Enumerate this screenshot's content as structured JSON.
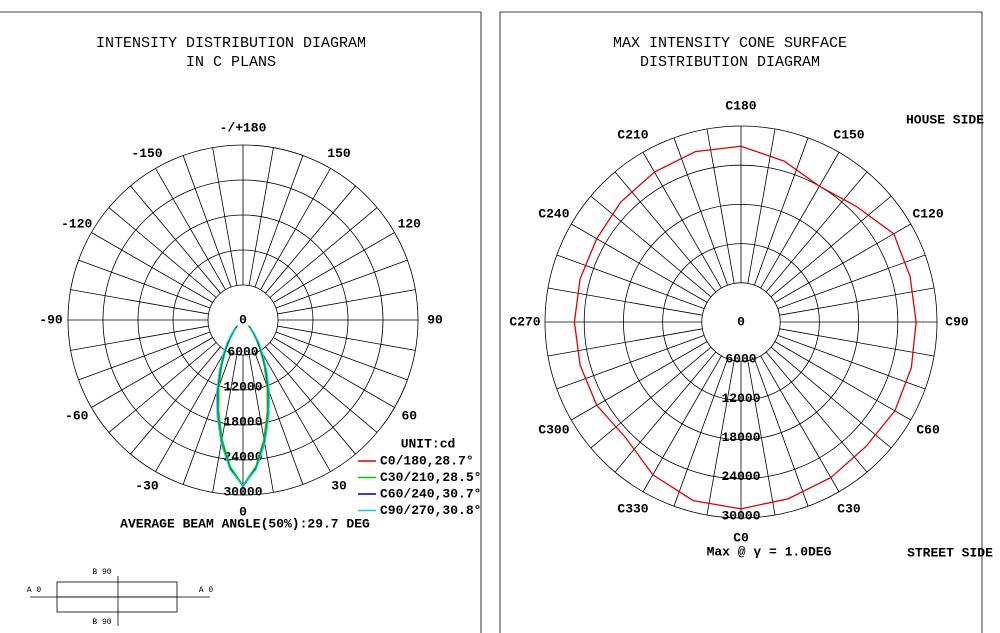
{
  "chart_data": [
    {
      "type": "polar",
      "title": [
        "INTENSITY DISTRIBUTION DIAGRAM",
        "IN C PLANS"
      ],
      "thetaticks": [
        {
          "value": 180,
          "label": "-/+180"
        },
        150,
        120,
        90,
        60,
        30,
        0,
        -30,
        -60,
        -90,
        -120,
        -150
      ],
      "rlim": [
        0,
        30000
      ],
      "rticks": [
        0,
        6000,
        12000,
        18000,
        24000,
        30000
      ],
      "theta": [
        -45,
        -40,
        -35,
        -30,
        -25,
        -20,
        -15,
        -10,
        -5,
        0,
        5,
        10,
        15,
        20,
        25,
        30,
        35,
        40,
        45
      ],
      "series": [
        {
          "name": "C0/180,28.7°",
          "color": "#e00000",
          "values": [
            1400,
            2400,
            3900,
            6000,
            8800,
            12300,
            16300,
            20800,
            25300,
            28400,
            25300,
            20800,
            16300,
            12300,
            8800,
            6000,
            3900,
            2400,
            1400
          ]
        },
        {
          "name": "C30/210,28.5°",
          "color": "#00cc00",
          "values": [
            1300,
            2300,
            3800,
            5900,
            8600,
            12100,
            16100,
            20700,
            25200,
            28300,
            25200,
            20700,
            16100,
            12100,
            8600,
            5900,
            3800,
            2300,
            1300
          ]
        },
        {
          "name": "C60/240,30.7°",
          "color": "#00008b",
          "values": [
            1700,
            2800,
            4400,
            6600,
            9400,
            13000,
            17000,
            21400,
            25600,
            28500,
            25600,
            21400,
            17000,
            13000,
            9400,
            6600,
            4400,
            2800,
            1700
          ]
        },
        {
          "name": "C90/270,30.8°",
          "color": "#00d0e0",
          "values": [
            1800,
            3000,
            4700,
            6800,
            9600,
            13200,
            17100,
            21500,
            25700,
            28400,
            25700,
            21500,
            17100,
            13200,
            9600,
            6800,
            4700,
            3000,
            1800
          ]
        }
      ],
      "legend": true,
      "unit_label": "UNIT:cd",
      "note": "AVERAGE BEAM ANGLE(50%):29.7 DEG"
    },
    {
      "type": "polar",
      "title": [
        "MAX INTENSITY CONE SURFACE",
        "DISTRIBUTION DIAGRAM"
      ],
      "thetaticks": [
        {
          "value": 0,
          "label": "C0"
        },
        {
          "value": 30,
          "label": "C30"
        },
        {
          "value": 60,
          "label": "C60"
        },
        {
          "value": 90,
          "label": "C90"
        },
        {
          "value": 120,
          "label": "C120"
        },
        {
          "value": 150,
          "label": "C150"
        },
        {
          "value": 180,
          "label": "C180"
        },
        {
          "value": 210,
          "label": "C210"
        },
        {
          "value": 240,
          "label": "C240"
        },
        {
          "value": 270,
          "label": "C270"
        },
        {
          "value": 300,
          "label": "C300"
        },
        {
          "value": 330,
          "label": "C330"
        }
      ],
      "rlim": [
        0,
        30000
      ],
      "rticks": [
        0,
        6000,
        12000,
        18000,
        24000,
        30000
      ],
      "theta": [
        0,
        15,
        30,
        45,
        60,
        75,
        90,
        105,
        120,
        135,
        150,
        165,
        180,
        195,
        210,
        225,
        240,
        255,
        270,
        285,
        300,
        315,
        330,
        345
      ],
      "series": [
        {
          "color": "#e00000",
          "closed": true,
          "values": [
            28600,
            28000,
            27500,
            27000,
            27200,
            27000,
            26800,
            26800,
            27000,
            25000,
            24000,
            25500,
            26900,
            27000,
            26500,
            26000,
            25500,
            25500,
            25500,
            25500,
            25500,
            25000,
            27000,
            28300
          ]
        }
      ],
      "legend": false,
      "note": "Max @ γ = 1.0DEG",
      "side_labels": [
        "HOUSE SIDE",
        "STREET SIDE"
      ]
    }
  ],
  "sketch": {
    "labels": [
      "B 90",
      "A 0",
      "A 0",
      "B 90"
    ]
  }
}
